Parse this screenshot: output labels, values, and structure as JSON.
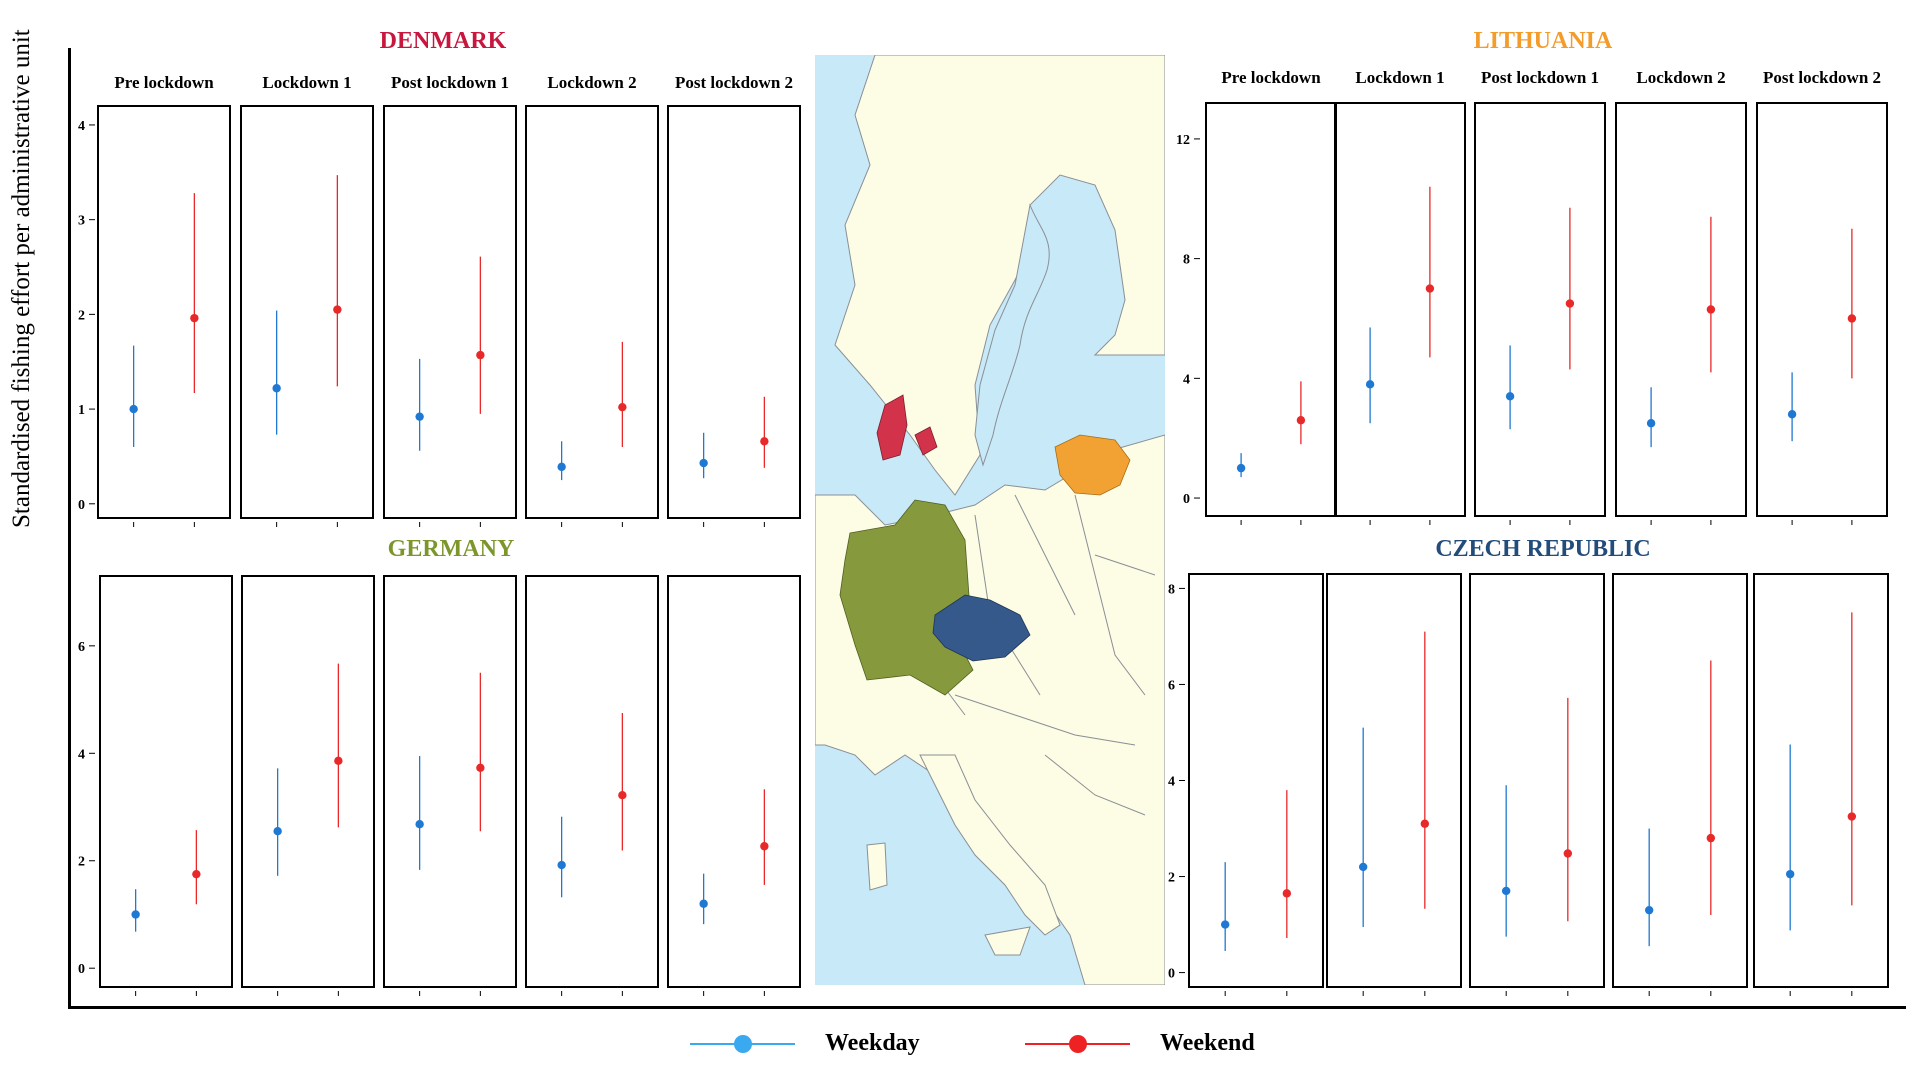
{
  "axis_label": "Standardised fishing effort per administrative unit",
  "legend": [
    {
      "label": "Weekday",
      "color": "#1f78d1",
      "marker_color": "#3aa9ef"
    },
    {
      "label": "Weekend",
      "color": "#e8292a",
      "marker_color": "#ee2222"
    }
  ],
  "chart_data": [
    {
      "type": "scatter",
      "title": "DENMARK",
      "title_color": "#c8173e",
      "categories": [
        "Pre lockdown",
        "Lockdown 1",
        "Post lockdown 1",
        "Lockdown 2",
        "Post lockdown 2"
      ],
      "ylim": [
        -0.15,
        4.2
      ],
      "yticks": [
        0,
        1,
        2,
        3,
        4
      ],
      "series": [
        {
          "name": "Weekday",
          "values": [
            1.0,
            1.22,
            0.92,
            0.39,
            0.43
          ],
          "lower": [
            0.6,
            0.73,
            0.56,
            0.25,
            0.27
          ],
          "upper": [
            1.67,
            2.04,
            1.53,
            0.66,
            0.75
          ]
        },
        {
          "name": "Weekend",
          "values": [
            1.96,
            2.05,
            1.57,
            1.02,
            0.66
          ],
          "lower": [
            1.17,
            1.24,
            0.95,
            0.6,
            0.38
          ],
          "upper": [
            3.28,
            3.47,
            2.61,
            1.71,
            1.13
          ]
        }
      ]
    },
    {
      "type": "scatter",
      "title": "LITHUANIA",
      "title_color": "#f39c2a",
      "categories": [
        "Pre lockdown",
        "Lockdown 1",
        "Post lockdown 1",
        "Lockdown 2",
        "Post lockdown 2"
      ],
      "ylim": [
        -0.6,
        13.2
      ],
      "yticks": [
        0,
        4,
        8,
        12
      ],
      "series": [
        {
          "name": "Weekday",
          "values": [
            1.0,
            3.8,
            3.4,
            2.5,
            2.8
          ],
          "lower": [
            0.7,
            2.5,
            2.3,
            1.7,
            1.9
          ],
          "upper": [
            1.5,
            5.7,
            5.1,
            3.7,
            4.2
          ]
        },
        {
          "name": "Weekend",
          "values": [
            2.6,
            7.0,
            6.5,
            6.3,
            6.0
          ],
          "lower": [
            1.8,
            4.7,
            4.3,
            4.2,
            4.0
          ],
          "upper": [
            3.9,
            10.4,
            9.7,
            9.4,
            9.0
          ]
        }
      ]
    },
    {
      "type": "scatter",
      "title": "GERMANY",
      "title_color": "#7d962c",
      "categories": [
        "Pre lockdown",
        "Lockdown 1",
        "Post lockdown 1",
        "Lockdown 2",
        "Post lockdown 2"
      ],
      "ylim": [
        -0.35,
        7.3
      ],
      "yticks": [
        0,
        2,
        4,
        6
      ],
      "series": [
        {
          "name": "Weekday",
          "values": [
            1.0,
            2.55,
            2.68,
            1.92,
            1.2
          ],
          "lower": [
            0.68,
            1.72,
            1.83,
            1.32,
            0.82
          ],
          "upper": [
            1.47,
            3.72,
            3.95,
            2.82,
            1.76
          ]
        },
        {
          "name": "Weekend",
          "values": [
            1.75,
            3.86,
            3.73,
            3.22,
            2.27
          ],
          "lower": [
            1.19,
            2.62,
            2.55,
            2.19,
            1.55
          ],
          "upper": [
            2.57,
            5.67,
            5.5,
            4.75,
            3.33
          ]
        }
      ]
    },
    {
      "type": "scatter",
      "title": "CZECH REPUBLIC",
      "title_color": "#224c7a",
      "categories": [
        "Pre lockdown",
        "Lockdown 1",
        "Post lockdown 1",
        "Lockdown 2",
        "Post lockdown 2"
      ],
      "ylim": [
        -0.3,
        8.3
      ],
      "yticks": [
        0,
        2,
        4,
        6,
        8
      ],
      "series": [
        {
          "name": "Weekday",
          "values": [
            1.0,
            2.2,
            1.7,
            1.3,
            2.05
          ],
          "lower": [
            0.45,
            0.95,
            0.75,
            0.55,
            0.88
          ],
          "upper": [
            2.3,
            5.1,
            3.9,
            3.0,
            4.75
          ]
        },
        {
          "name": "Weekend",
          "values": [
            1.65,
            3.1,
            2.48,
            2.8,
            3.25
          ],
          "lower": [
            0.72,
            1.33,
            1.07,
            1.2,
            1.4
          ],
          "upper": [
            3.8,
            7.1,
            5.72,
            6.5,
            7.5
          ]
        }
      ]
    }
  ],
  "map": {
    "sea_color": "#c8e9f8",
    "land_color": "#fdfce4",
    "highlights": [
      {
        "country": "DENMARK",
        "color": "#d2334b"
      },
      {
        "country": "LITHUANIA",
        "color": "#f2a232"
      },
      {
        "country": "GERMANY",
        "color": "#869a3d"
      },
      {
        "country": "CZECH REPUBLIC",
        "color": "#35598a"
      }
    ]
  }
}
